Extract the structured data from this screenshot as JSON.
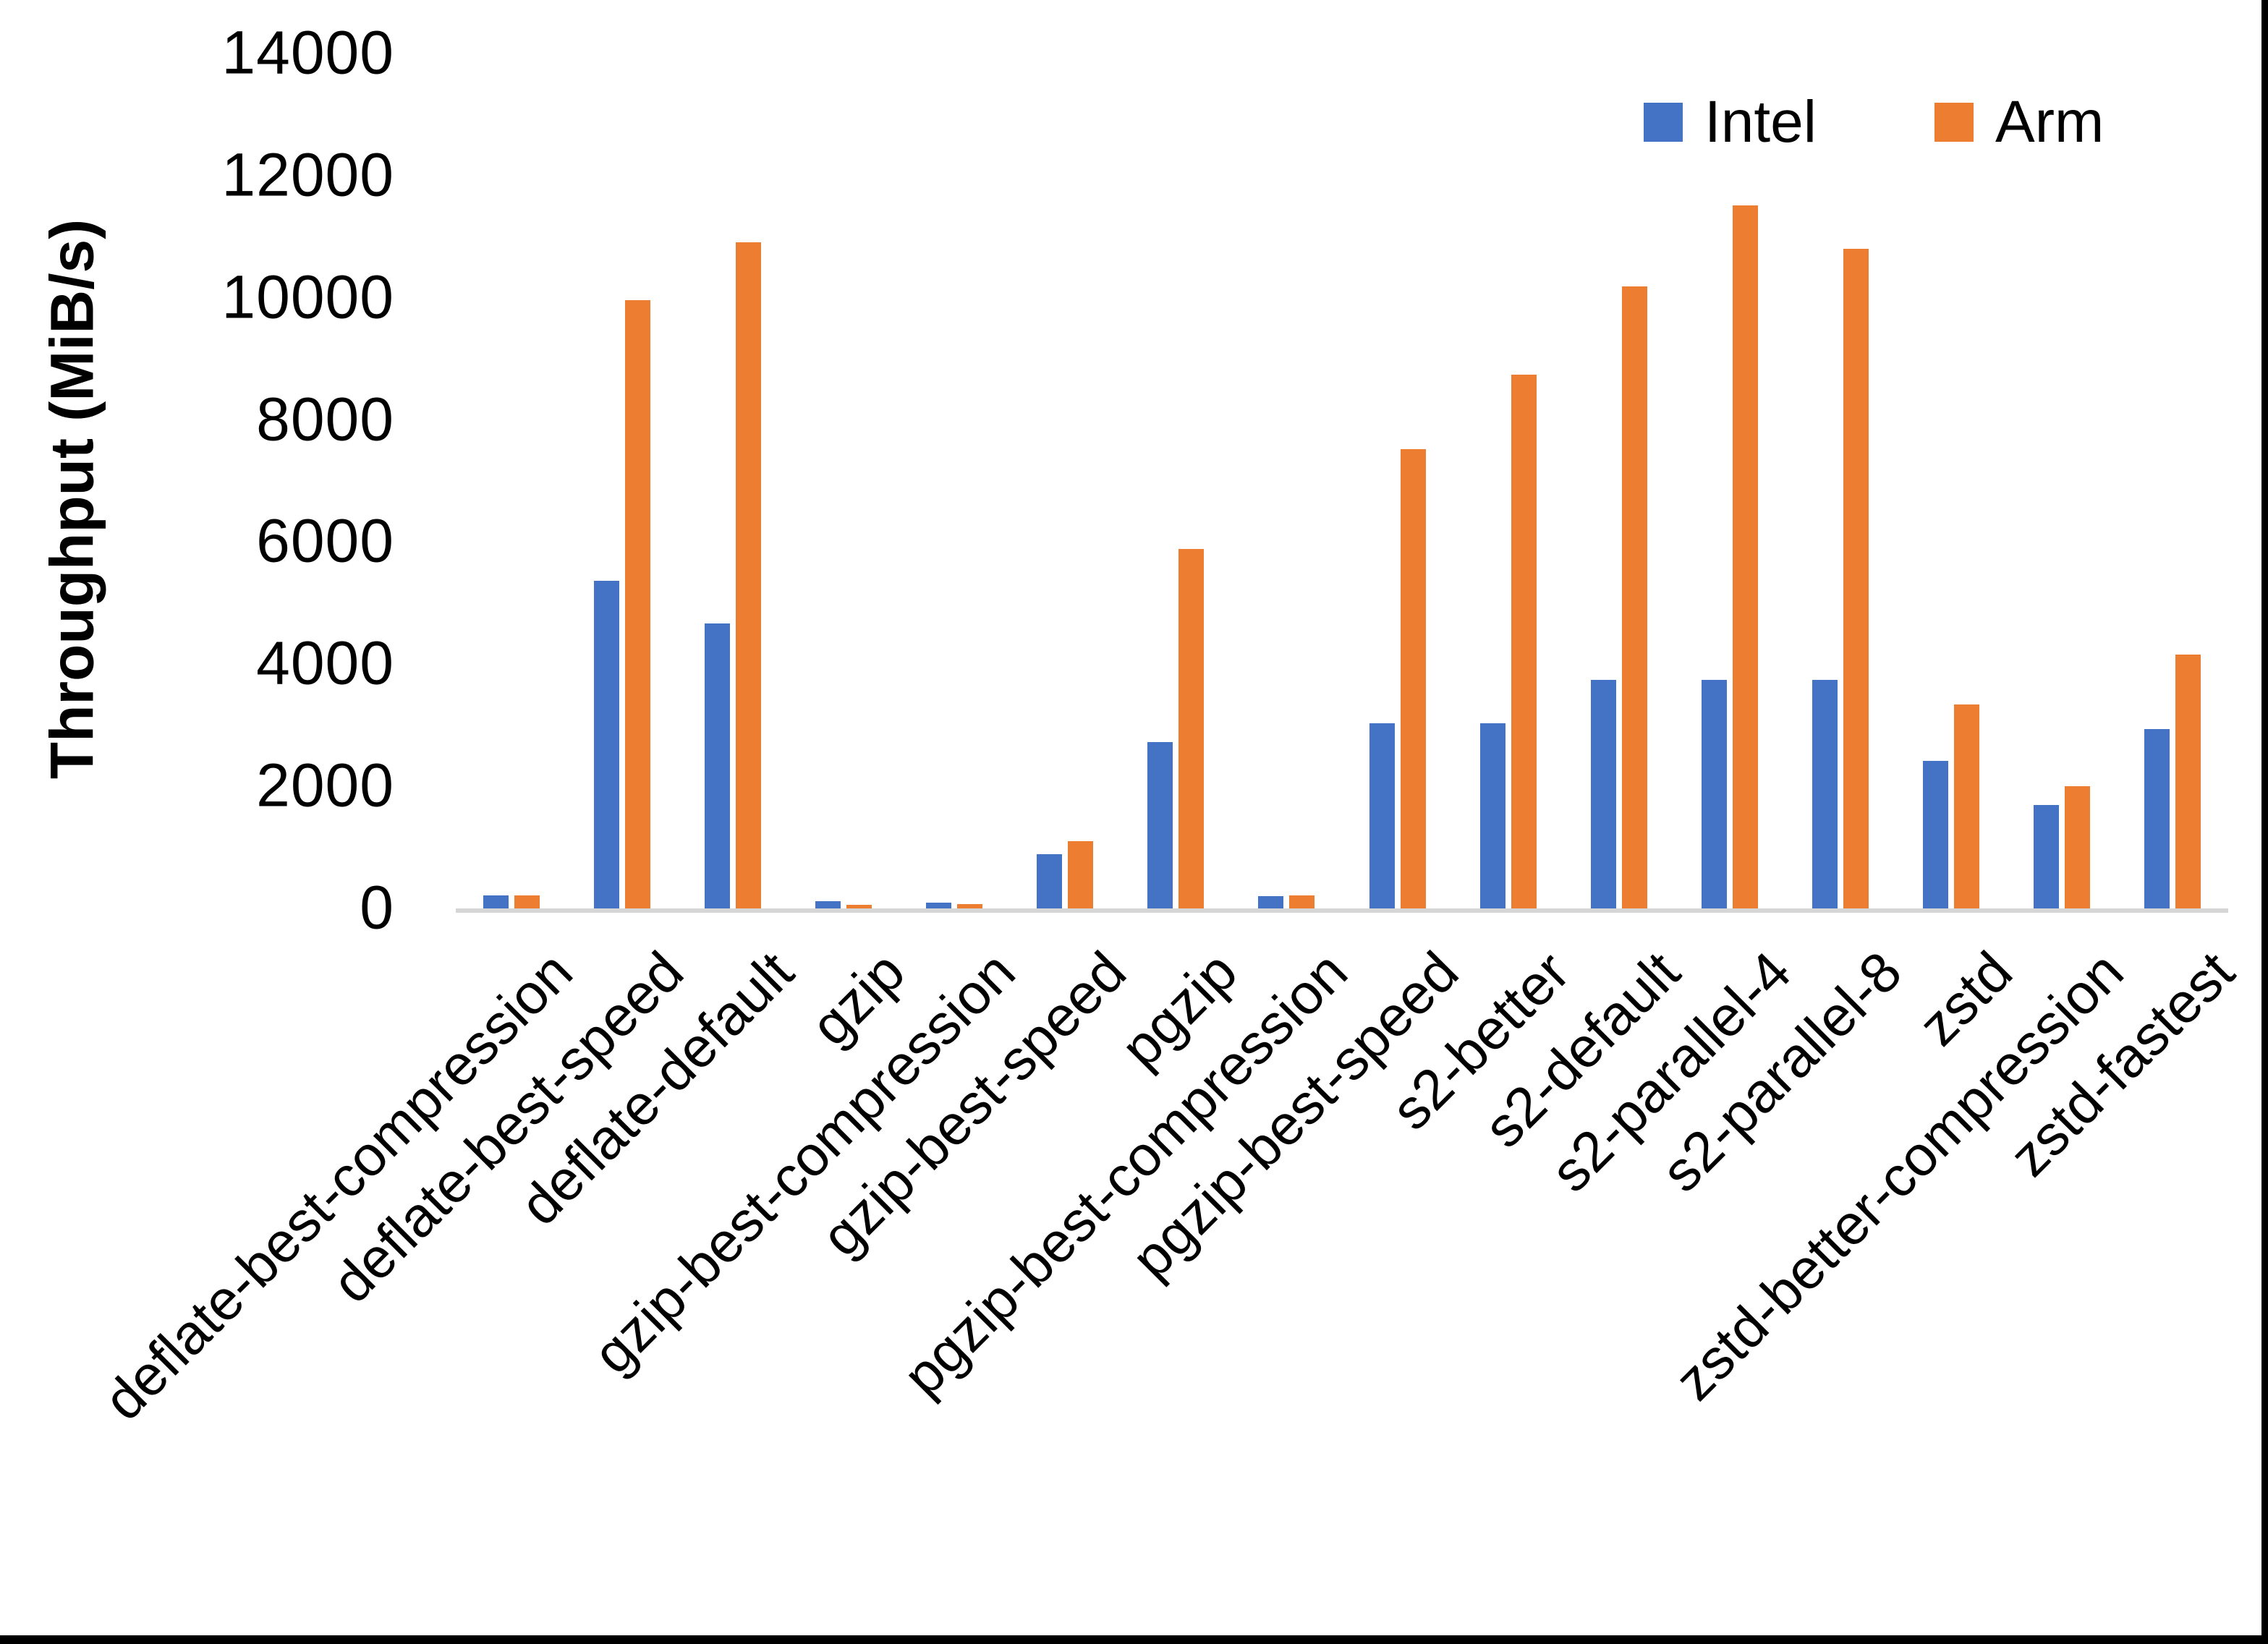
{
  "chart_data": {
    "type": "bar",
    "title": "",
    "xlabel": "",
    "ylabel": "Throughput (MiB/s)",
    "ylim": [
      0,
      14000
    ],
    "ytick_step": 2000,
    "yticks": [
      0,
      2000,
      4000,
      6000,
      8000,
      10000,
      12000,
      14000
    ],
    "grid": false,
    "legend_position": "top-right",
    "categories": [
      "deflate-best-compression",
      "deflate-best-speed",
      "deflate-default",
      "gzip",
      "gzip-best-compression",
      "gzip-best-speed",
      "pgzip",
      "pgzip-best-compression",
      "pgzip-best-speed",
      "s2-better",
      "s2-default",
      "s2-parallel-4",
      "s2-parallel-8",
      "zstd",
      "zstd-better-compression",
      "zstd-fastest"
    ],
    "series": [
      {
        "name": "Intel",
        "color": "#4472C4",
        "values": [
          250,
          5400,
          4700,
          150,
          130,
          920,
          2760,
          240,
          3070,
          3070,
          3780,
          3780,
          3780,
          2450,
          1730,
          2970
        ]
      },
      {
        "name": "Arm",
        "color": "#ED7D31",
        "values": [
          245,
          10000,
          10950,
          100,
          105,
          1140,
          5920,
          250,
          7560,
          8780,
          10220,
          11550,
          10840,
          3370,
          2040,
          4190
        ]
      }
    ]
  },
  "colors": {
    "background": "#ffffff",
    "axis_line": "#d6d6d6",
    "text": "#000000",
    "window_border": "#000000"
  }
}
